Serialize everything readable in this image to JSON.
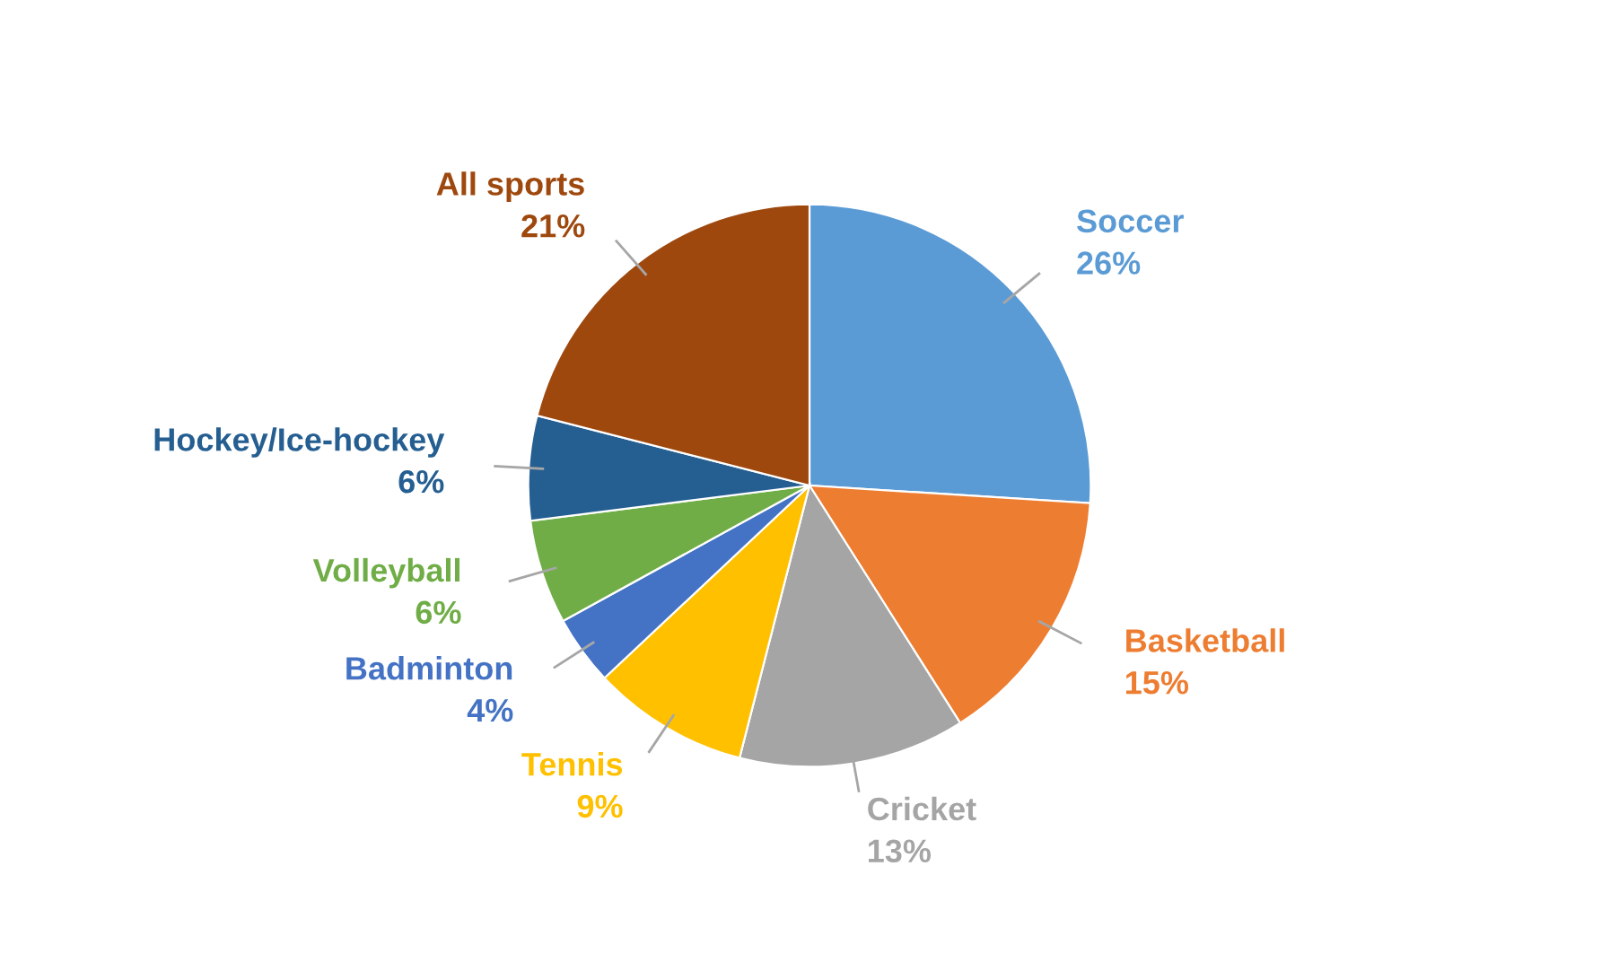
{
  "chart_data": {
    "type": "pie",
    "categories": [
      "Soccer",
      "Basketball",
      "Cricket",
      "Tennis",
      "Badminton",
      "Volleyball",
      "Hockey/Ice-hockey",
      "All sports"
    ],
    "values": [
      26,
      15,
      13,
      9,
      4,
      6,
      6,
      21
    ],
    "value_labels": [
      "26%",
      "15%",
      "13%",
      "9%",
      "4%",
      "6%",
      "6%",
      "21%"
    ],
    "colors": [
      "#5b9bd5",
      "#ed7d31",
      "#a5a5a5",
      "#ffc000",
      "#4472c4",
      "#70ad47",
      "#255e91",
      "#9e480e"
    ],
    "legend": false
  }
}
